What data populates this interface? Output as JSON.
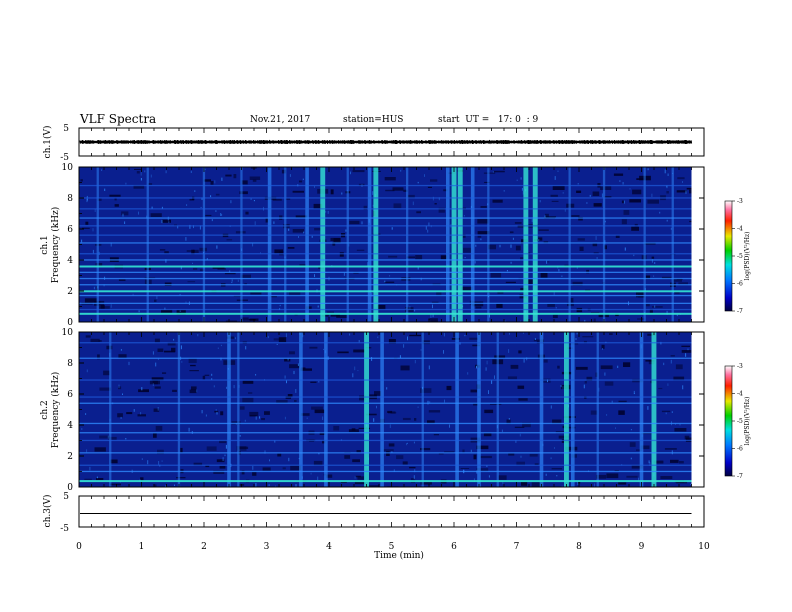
{
  "header": {
    "title": "VLF Spectra",
    "date": "Nov.21, 2017",
    "station": "station=HUS",
    "start": "start  UT =   17: 0  : 9"
  },
  "colors": {
    "spectrogram_background": "#00002a",
    "spectrogram_base": "#0a1f8f",
    "spectrogram_line": "#2f8cff",
    "spectrogram_strong": "#35e6d4",
    "axes": "#000000"
  },
  "chart_data": [
    {
      "panel": "ch1-waveform",
      "type": "line",
      "ylabel": "ch.1(V)",
      "ylim": [
        -5,
        5
      ],
      "yticks": [
        "5",
        "-5"
      ],
      "xlim": [
        0,
        10
      ],
      "data_end_min": 9.8,
      "description_value": "noise band of roughly ±0.5 V"
    },
    {
      "panel": "ch1-spectrogram",
      "type": "heatmap",
      "ylabel": "ch.1\nFrequency (kHz)",
      "ylim": [
        0,
        10
      ],
      "yticks": [
        "0",
        "2",
        "4",
        "6",
        "8",
        "10"
      ],
      "xlim": [
        0,
        10
      ],
      "data_end_min": 9.8,
      "horizontal_lines_khz": [
        {
          "f": 0.55,
          "level": 3
        },
        {
          "f": 0.8,
          "level": 1
        },
        {
          "f": 1.2,
          "level": 2
        },
        {
          "f": 1.7,
          "level": 2
        },
        {
          "f": 2.0,
          "level": 3
        },
        {
          "f": 2.4,
          "level": 2
        },
        {
          "f": 2.8,
          "level": 2
        },
        {
          "f": 3.2,
          "level": 2
        },
        {
          "f": 3.6,
          "level": 3
        },
        {
          "f": 4.0,
          "level": 2
        },
        {
          "f": 4.4,
          "level": 1
        },
        {
          "f": 5.1,
          "level": 2
        },
        {
          "f": 5.6,
          "level": 1
        },
        {
          "f": 6.2,
          "level": 1
        },
        {
          "f": 6.7,
          "level": 2
        },
        {
          "f": 7.3,
          "level": 1
        },
        {
          "f": 8.0,
          "level": 1
        },
        {
          "f": 8.8,
          "level": 1
        }
      ],
      "vertical_bursts_min": [
        {
          "t": 0.3,
          "i": 1
        },
        {
          "t": 1.1,
          "i": 1
        },
        {
          "t": 2.0,
          "i": 1
        },
        {
          "t": 2.6,
          "i": 1
        },
        {
          "t": 3.05,
          "i": 2
        },
        {
          "t": 3.3,
          "i": 1
        },
        {
          "t": 3.65,
          "i": 2
        },
        {
          "t": 3.9,
          "i": 3
        },
        {
          "t": 4.3,
          "i": 1
        },
        {
          "t": 4.65,
          "i": 2
        },
        {
          "t": 4.75,
          "i": 3
        },
        {
          "t": 5.25,
          "i": 1
        },
        {
          "t": 5.9,
          "i": 2
        },
        {
          "t": 6.0,
          "i": 3
        },
        {
          "t": 6.1,
          "i": 3
        },
        {
          "t": 6.3,
          "i": 2
        },
        {
          "t": 6.55,
          "i": 1
        },
        {
          "t": 7.15,
          "i": 3
        },
        {
          "t": 7.3,
          "i": 3
        },
        {
          "t": 7.85,
          "i": 1
        },
        {
          "t": 8.4,
          "i": 1
        },
        {
          "t": 9.05,
          "i": 1
        },
        {
          "t": 9.5,
          "i": 1
        }
      ]
    },
    {
      "panel": "ch2-spectrogram",
      "type": "heatmap",
      "ylabel": "ch.2\nFrequency (kHz)",
      "ylim": [
        0,
        10
      ],
      "yticks": [
        "0",
        "2",
        "4",
        "6",
        "8",
        "10"
      ],
      "xlim": [
        0,
        10
      ],
      "data_end_min": 9.8,
      "horizontal_lines_khz": [
        {
          "f": 0.4,
          "level": 3
        },
        {
          "f": 1.0,
          "level": 2
        },
        {
          "f": 1.4,
          "level": 1
        },
        {
          "f": 2.2,
          "level": 2
        },
        {
          "f": 3.0,
          "level": 1
        },
        {
          "f": 3.5,
          "level": 2
        },
        {
          "f": 4.1,
          "level": 2
        },
        {
          "f": 5.4,
          "level": 2
        },
        {
          "f": 5.8,
          "level": 1
        },
        {
          "f": 6.9,
          "level": 1
        },
        {
          "f": 8.3,
          "level": 2
        },
        {
          "f": 9.3,
          "level": 1
        }
      ],
      "vertical_bursts_min": [
        {
          "t": 0.5,
          "i": 1
        },
        {
          "t": 1.6,
          "i": 1
        },
        {
          "t": 2.4,
          "i": 2
        },
        {
          "t": 2.55,
          "i": 1
        },
        {
          "t": 3.55,
          "i": 2
        },
        {
          "t": 3.95,
          "i": 2
        },
        {
          "t": 4.6,
          "i": 3
        },
        {
          "t": 4.85,
          "i": 2
        },
        {
          "t": 5.5,
          "i": 1
        },
        {
          "t": 6.05,
          "i": 2
        },
        {
          "t": 6.4,
          "i": 2
        },
        {
          "t": 6.7,
          "i": 1
        },
        {
          "t": 7.4,
          "i": 2
        },
        {
          "t": 7.8,
          "i": 3
        },
        {
          "t": 7.9,
          "i": 2
        },
        {
          "t": 8.3,
          "i": 1
        },
        {
          "t": 9.0,
          "i": 2
        },
        {
          "t": 9.2,
          "i": 3
        }
      ]
    },
    {
      "panel": "ch3-waveform",
      "type": "line",
      "ylabel": "ch.3(V)",
      "ylim": [
        -5,
        5
      ],
      "yticks": [
        "5",
        "-5"
      ],
      "xlim": [
        0,
        10
      ],
      "data_end_min": 9.8,
      "value": 0
    }
  ],
  "xaxis": {
    "label": "Time (min)",
    "ticks": [
      "0",
      "1",
      "2",
      "3",
      "4",
      "5",
      "6",
      "7",
      "8",
      "9",
      "10"
    ]
  },
  "colorbars": [
    {
      "panel": "ch1",
      "label": "log(PSD)(V²/Hz)",
      "ticks": [
        "-3",
        "-4",
        "-5",
        "-6",
        "-7"
      ],
      "range": [
        -7,
        -3
      ]
    },
    {
      "panel": "ch2",
      "label": "log(PSD)(V²/Hz)",
      "ticks": [
        "-3",
        "-4",
        "-5",
        "-6",
        "-7"
      ],
      "range": [
        -7,
        -3
      ]
    }
  ]
}
